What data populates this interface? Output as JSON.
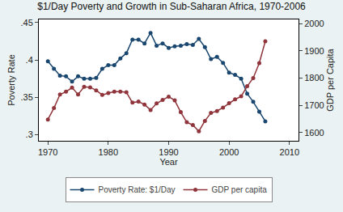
{
  "chart_data": {
    "type": "line",
    "title": "$1/Day Poverty and Growth in Sub-Saharan Africa, 1970-2006",
    "x_label": "Year",
    "y_label": "Poverty Rate",
    "y2_label": "GDP per Capita",
    "x": [
      1970,
      1971,
      1972,
      1973,
      1974,
      1975,
      1976,
      1977,
      1978,
      1979,
      1980,
      1981,
      1982,
      1983,
      1984,
      1985,
      1986,
      1987,
      1988,
      1989,
      1990,
      1991,
      1992,
      1993,
      1994,
      1995,
      1996,
      1997,
      1998,
      1999,
      2000,
      2001,
      2002,
      2003,
      2004,
      2005,
      2006
    ],
    "series": [
      {
        "name": "Poverty Rate: $1/Day",
        "color": "#1a476f",
        "marker": "circle",
        "values": [
          0.398,
          0.388,
          0.379,
          0.378,
          0.371,
          0.378,
          0.375,
          0.375,
          0.376,
          0.388,
          0.393,
          0.393,
          0.402,
          0.409,
          0.427,
          0.427,
          0.422,
          0.436,
          0.419,
          0.422,
          0.416,
          0.418,
          0.419,
          0.421,
          0.42,
          0.428,
          0.417,
          0.401,
          0.404,
          0.396,
          0.383,
          0.38,
          0.375,
          0.355,
          0.344,
          0.331,
          0.318
        ]
      },
      {
        "name": "GDP per capita",
        "color": "#90353b",
        "marker": "circle",
        "axis": "y2",
        "values": [
          1648,
          1690,
          1740,
          1750,
          1765,
          1740,
          1768,
          1766,
          1755,
          1738,
          1745,
          1750,
          1750,
          1748,
          1710,
          1714,
          1703,
          1683,
          1707,
          1720,
          1732,
          1718,
          1675,
          1638,
          1628,
          1605,
          1643,
          1672,
          1679,
          1692,
          1708,
          1722,
          1733,
          1770,
          1800,
          1855,
          1935
        ]
      }
    ],
    "xlim": [
      1968.5,
      2011.5
    ],
    "xticks": [
      1970,
      1980,
      1990,
      2000,
      2010
    ],
    "ylim": [
      0.292,
      0.454
    ],
    "yticks": [
      {
        "value": 0.3,
        "label": ".3"
      },
      {
        "value": 0.35,
        "label": ".35"
      },
      {
        "value": 0.4,
        "label": ".4"
      },
      {
        "value": 0.45,
        "label": ".45"
      }
    ],
    "y2lim": [
      1570,
      2015
    ],
    "y2ticks": [
      1600,
      1700,
      1800,
      1900,
      2000
    ],
    "grid": false,
    "legend": "bottom"
  }
}
